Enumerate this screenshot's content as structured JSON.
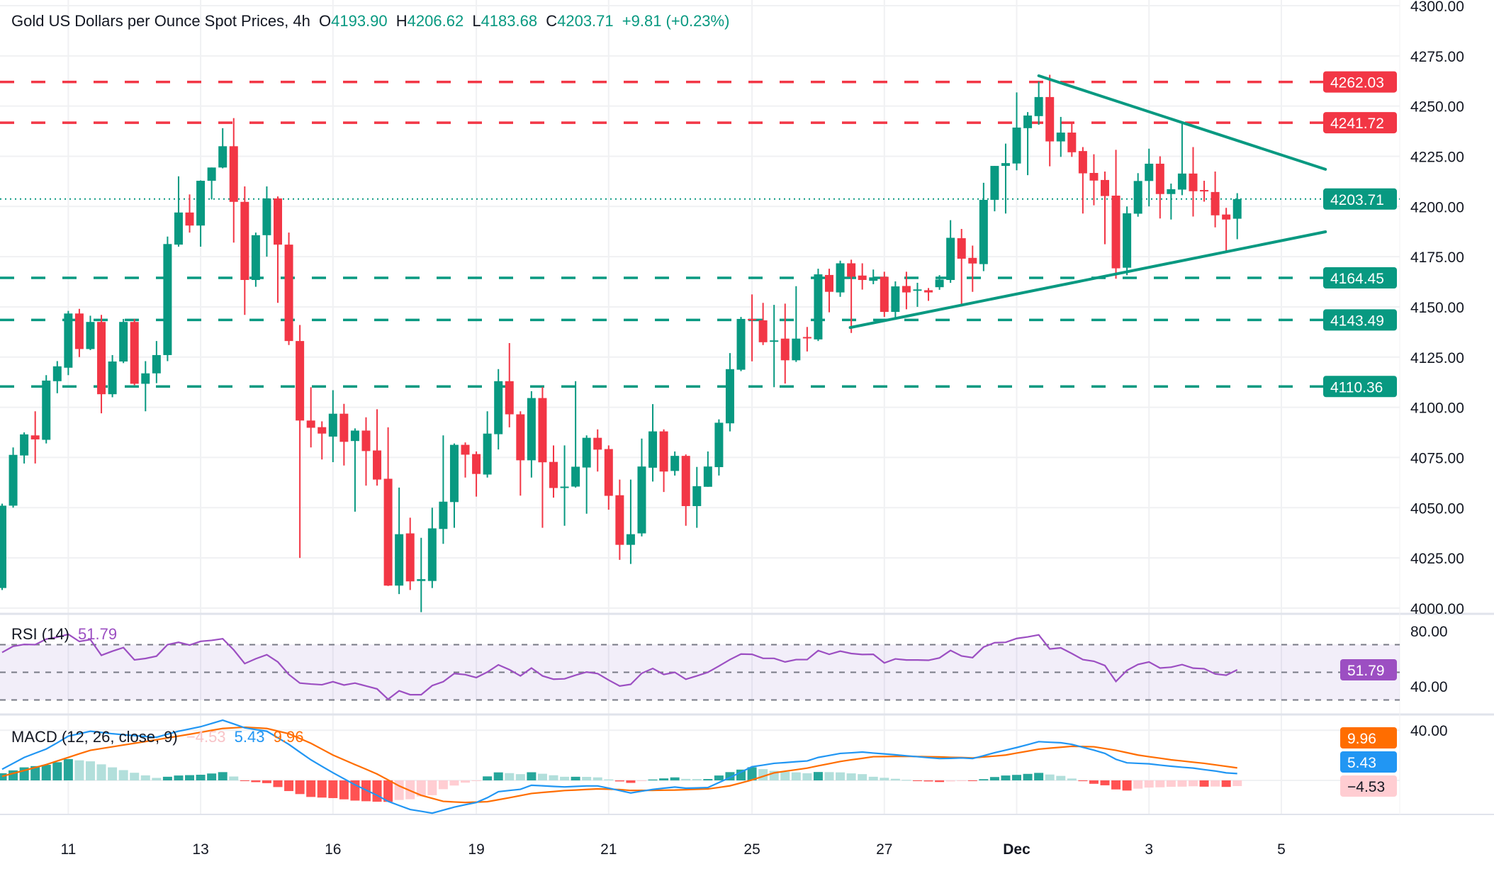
{
  "header": {
    "title": "Gold US Dollars per Ounce Spot Prices, 4h",
    "open_label": "O",
    "open": "4193.90",
    "high_label": "H",
    "high": "4206.62",
    "low_label": "L",
    "low": "4183.68",
    "close_label": "C",
    "close": "4203.71",
    "change": "+9.81 (+0.23%)"
  },
  "colors": {
    "up": "#089981",
    "down": "#f23645",
    "resistance": "#f23645",
    "support": "#089981",
    "rsi": "#9c4fc2",
    "macd": "#2196f3",
    "signal": "#ff6d00",
    "hist_up_strong": "#26a69a",
    "hist_up_weak": "#b2dfdb",
    "hist_down_strong": "#ff5252",
    "hist_down_weak": "#ffcdd2"
  },
  "chart_data": [
    {
      "type": "candlestick",
      "title": "Gold US Dollars per Ounce Spot Prices, 4h",
      "ylim": [
        3997,
        4302.8
      ],
      "y_ticks": [
        "4000.00",
        "4025.00",
        "4050.00",
        "4075.00",
        "4100.00",
        "4125.00",
        "4150.00",
        "4175.00",
        "4200.00",
        "4225.00",
        "4250.00",
        "4275.00",
        "4300.00"
      ],
      "x_ticks": [
        {
          "label": "11",
          "candle": 6
        },
        {
          "label": "13",
          "candle": 18
        },
        {
          "label": "16",
          "candle": 30
        },
        {
          "label": "19",
          "candle": 43
        },
        {
          "label": "21",
          "candle": 55
        },
        {
          "label": "25",
          "candle": 68
        },
        {
          "label": "27",
          "candle": 80
        },
        {
          "label": "Dec",
          "candle": 92
        },
        {
          "label": "3",
          "candle": 104
        },
        {
          "label": "5",
          "candle": 116
        }
      ],
      "grid": true,
      "ohlc": [
        [
          4010,
          4052,
          4009,
          4051
        ],
        [
          4051,
          4080,
          4050,
          4076.3
        ],
        [
          4076,
          4087.5,
          4072,
          4086.5
        ],
        [
          4086,
          4098,
          4072,
          4084
        ],
        [
          4083.8,
          4116,
          4082,
          4113.3
        ],
        [
          4113,
          4123,
          4107,
          4120.4
        ],
        [
          4119.7,
          4148,
          4116,
          4146.7
        ],
        [
          4146.7,
          4149,
          4125,
          4129
        ],
        [
          4129,
          4145.6,
          4128.5,
          4142.5
        ],
        [
          4142.5,
          4146,
          4097,
          4106.5
        ],
        [
          4106.5,
          4126,
          4105,
          4122.8
        ],
        [
          4122.8,
          4144,
          4122,
          4142.5
        ],
        [
          4142.5,
          4144,
          4111,
          4111.7
        ],
        [
          4111.7,
          4123,
          4098,
          4116.9
        ],
        [
          4116.9,
          4133,
          4112,
          4126
        ],
        [
          4126,
          4185,
          4123,
          4181.3
        ],
        [
          4181,
          4215,
          4180,
          4197
        ],
        [
          4197,
          4206,
          4187,
          4190.5
        ],
        [
          4190.5,
          4213,
          4180,
          4212.8
        ],
        [
          4212.8,
          4219.4,
          4203.5,
          4219.4
        ],
        [
          4219.4,
          4239,
          4219,
          4230
        ],
        [
          4230,
          4244,
          4182,
          4202.3
        ],
        [
          4202.3,
          4210,
          4146,
          4163.4
        ],
        [
          4163.4,
          4187,
          4160,
          4185.7
        ],
        [
          4185.7,
          4210,
          4175,
          4204
        ],
        [
          4204,
          4205,
          4152,
          4181
        ],
        [
          4181,
          4187,
          4131,
          4133
        ],
        [
          4133,
          4141,
          4025,
          4093.4
        ],
        [
          4093.4,
          4110,
          4080,
          4089.8
        ],
        [
          4090.1,
          4093,
          4074,
          4086.9
        ],
        [
          4085.4,
          4108.5,
          4072.7,
          4096.8
        ],
        [
          4096.8,
          4101.7,
          4071,
          4082.8
        ],
        [
          4083.2,
          4089.5,
          4048,
          4088.4
        ],
        [
          4088.4,
          4095,
          4061,
          4078.2
        ],
        [
          4078.5,
          4099,
          4061,
          4064
        ],
        [
          4064.4,
          4090,
          4011,
          4011.2
        ],
        [
          4011.2,
          4060,
          4007,
          4036.8
        ],
        [
          4037.2,
          4045,
          4009,
          4013.3
        ],
        [
          4013.5,
          4035,
          3998,
          4014.4
        ],
        [
          4013.5,
          4050,
          4010,
          4039.7
        ],
        [
          4039.4,
          4086,
          4032,
          4053
        ],
        [
          4052.8,
          4082,
          4040,
          4081.3
        ],
        [
          4081.3,
          4082.5,
          4065,
          4076.4
        ],
        [
          4076.7,
          4078,
          4055.5,
          4066.8
        ],
        [
          4066.5,
          4098,
          4065,
          4086.9
        ],
        [
          4086.6,
          4119,
          4079,
          4113
        ],
        [
          4113,
          4132,
          4090,
          4096.5
        ],
        [
          4096.5,
          4098,
          4056,
          4073.6
        ],
        [
          4073.6,
          4108,
          4065,
          4104.6
        ],
        [
          4104.6,
          4110,
          4040,
          4072.6
        ],
        [
          4072.8,
          4081,
          4055,
          4059.8
        ],
        [
          4060,
          4081,
          4041,
          4060.5
        ],
        [
          4060.5,
          4113,
          4060,
          4070.4
        ],
        [
          4070,
          4086,
          4047,
          4084.8
        ],
        [
          4084.8,
          4089,
          4068,
          4078.9
        ],
        [
          4079.2,
          4081,
          4049,
          4055.9
        ],
        [
          4056.2,
          4064,
          4024,
          4031.5
        ],
        [
          4031.5,
          4064,
          4022,
          4036.8
        ],
        [
          4037.2,
          4084.4,
          4035.7,
          4070.5
        ],
        [
          4069.9,
          4101.6,
          4063,
          4088
        ],
        [
          4088,
          4089,
          4057.8,
          4068
        ],
        [
          4068.3,
          4078,
          4066,
          4075.8
        ],
        [
          4075.8,
          4076.5,
          4041,
          4050.8
        ],
        [
          4050.8,
          4070.3,
          4040,
          4060.7
        ],
        [
          4060.4,
          4078,
          4060.4,
          4070.5
        ],
        [
          4070.2,
          4094,
          4066,
          4092.3
        ],
        [
          4092,
          4127,
          4088,
          4119
        ],
        [
          4118.7,
          4145,
          4118,
          4144
        ],
        [
          4144,
          4156.2,
          4122.9,
          4143.5
        ],
        [
          4143.3,
          4152,
          4131,
          4132.4
        ],
        [
          4133,
          4151,
          4110,
          4133.3
        ],
        [
          4134.2,
          4151.6,
          4111.8,
          4123.4
        ],
        [
          4123.4,
          4160.3,
          4122.6,
          4134.2
        ],
        [
          4135,
          4140,
          4127.8,
          4134.3
        ],
        [
          4133.8,
          4169,
          4133,
          4166.2
        ],
        [
          4165.9,
          4169,
          4147.3,
          4157.5
        ],
        [
          4157.2,
          4173,
          4155,
          4171.7
        ],
        [
          4171.7,
          4173.5,
          4137,
          4165
        ],
        [
          4165.6,
          4171.7,
          4158.6,
          4163.4
        ],
        [
          4163,
          4168.6,
          4161.3,
          4164.7
        ],
        [
          4165,
          4167.5,
          4145,
          4147.5
        ],
        [
          4147.5,
          4162.7,
          4143.6,
          4160.2
        ],
        [
          4160.4,
          4167.5,
          4148.8,
          4157.2
        ],
        [
          4158.4,
          4162,
          4150,
          4158.7
        ],
        [
          4158.3,
          4159.4,
          4153,
          4157.2
        ],
        [
          4159.8,
          4165.8,
          4158.5,
          4163.6
        ],
        [
          4163.4,
          4193.2,
          4162,
          4184.4
        ],
        [
          4184.2,
          4188.8,
          4150.2,
          4174
        ],
        [
          4174.4,
          4180.5,
          4157.5,
          4171.6
        ],
        [
          4171.3,
          4211.8,
          4167.8,
          4203.3
        ],
        [
          4203.3,
          4220.2,
          4197.6,
          4220.2
        ],
        [
          4220.2,
          4231.3,
          4196.5,
          4221.6
        ],
        [
          4221.4,
          4256.8,
          4218,
          4239.3
        ],
        [
          4239,
          4247,
          4215.6,
          4245.3
        ],
        [
          4245,
          4262.2,
          4240.7,
          4254.5
        ],
        [
          4254.5,
          4265.6,
          4220,
          4232.4
        ],
        [
          4232.4,
          4244.6,
          4224.7,
          4236.8
        ],
        [
          4236.8,
          4241.7,
          4224.7,
          4227
        ],
        [
          4227.6,
          4229.6,
          4196.5,
          4216.5
        ],
        [
          4216.7,
          4226,
          4200.6,
          4212.9
        ],
        [
          4213.2,
          4217.4,
          4181.2,
          4205.2
        ],
        [
          4205.4,
          4228.2,
          4164,
          4169.2
        ],
        [
          4169.5,
          4200,
          4165.8,
          4196.6
        ],
        [
          4196.4,
          4216.6,
          4194.9,
          4212.7
        ],
        [
          4212.7,
          4228.8,
          4200,
          4221.3
        ],
        [
          4221.3,
          4225,
          4194,
          4206.2
        ],
        [
          4206.2,
          4211.4,
          4193.5,
          4208.6
        ],
        [
          4208.4,
          4241.7,
          4205.6,
          4216.4
        ],
        [
          4216.4,
          4229.6,
          4195,
          4207.6
        ],
        [
          4208.2,
          4212.8,
          4202.4,
          4208
        ],
        [
          4207.2,
          4217.4,
          4189.6,
          4195.6
        ],
        [
          4196,
          4199.3,
          4177.5,
          4193.5
        ],
        [
          4193.9,
          4206.62,
          4183.68,
          4203.71
        ]
      ],
      "levels": [
        {
          "value": 4262.03,
          "label": "4262.03",
          "kind": "resistance"
        },
        {
          "value": 4241.72,
          "label": "4241.72",
          "kind": "resistance"
        },
        {
          "value": 4164.45,
          "label": "4164.45",
          "kind": "support"
        },
        {
          "value": 4143.49,
          "label": "4143.49",
          "kind": "support"
        },
        {
          "value": 4110.36,
          "label": "4110.36",
          "kind": "support"
        }
      ],
      "last_price": {
        "value": 4203.71,
        "label": "4203.71"
      },
      "trendlines": [
        {
          "name": "upper",
          "points": [
            [
              94,
              4265.1
            ],
            [
              120,
              4218.5
            ]
          ]
        },
        {
          "name": "lower",
          "points": [
            [
              76.9,
              4139.7
            ],
            [
              120,
              4187.4
            ]
          ]
        }
      ]
    },
    {
      "type": "line",
      "title": "RSI (14)",
      "value_label": "51.79",
      "ylim": [
        19,
        91.3
      ],
      "y_ticks": [
        "80.00",
        "40.00"
      ],
      "bands": [
        70,
        50,
        30
      ],
      "values": [
        64.4,
        68.8,
        70.2,
        70,
        74,
        75.4,
        77.5,
        72.3,
        73.7,
        62.3,
        65.3,
        67.9,
        59,
        60,
        61.7,
        70,
        71.7,
        69.7,
        72.4,
        73.1,
        74.3,
        66.2,
        56.3,
        59.8,
        62.7,
        57.5,
        48.4,
        42.2,
        41.5,
        41,
        43.2,
        40.8,
        42.2,
        40.1,
        38,
        30.5,
        36.6,
        33.8,
        33.8,
        40.4,
        43.2,
        49.1,
        48.3,
        46.2,
        50.2,
        55.4,
        51.9,
        47.4,
        53.1,
        47.4,
        45,
        45.3,
        47.9,
        50.2,
        49.1,
        44.4,
        40.1,
        41.3,
        49.3,
        52.8,
        48.4,
        50,
        45,
        47.4,
        50,
        54.5,
        59.2,
        63.2,
        63,
        60.1,
        60.1,
        57.5,
        59.2,
        59.2,
        65.7,
        63,
        65.3,
        63.6,
        62.9,
        63,
        56.8,
        59.7,
        58.9,
        58.9,
        58.7,
        60.4,
        65.8,
        61.8,
        60.6,
        68.3,
        71.4,
        71.7,
        74.5,
        75.6,
        77.1,
        66.9,
        67.7,
        63.6,
        59.2,
        58,
        54.9,
        43.4,
        51.4,
        55.7,
        57.5,
        53.1,
        53.7,
        55.6,
        53,
        52.6,
        48.8,
        47.9,
        51.79
      ]
    },
    {
      "type": "line+bar",
      "title": "MACD (12, 26, close, 9)",
      "hist_label": "−4.53",
      "macd_label": "5.43",
      "signal_label": "9.96",
      "y_ticks": [
        "40.00"
      ],
      "macd": [
        8.9,
        13.6,
        18.3,
        21.7,
        25,
        30,
        35.3,
        37.2,
        39.2,
        38.2,
        37.2,
        36.4,
        35.7,
        35,
        34.4,
        36.8,
        39.2,
        41,
        42.8,
        45.4,
        48,
        45,
        41.9,
        40.5,
        39.2,
        34,
        28.7,
        22.5,
        16.4,
        11.2,
        6.1,
        1.3,
        -3.5,
        -7.7,
        -11.9,
        -16.7,
        -20,
        -23.2,
        -24.6,
        -26.1,
        -23.7,
        -21.3,
        -19.4,
        -17.6,
        -13.8,
        -9,
        -8,
        -7.1,
        -3.9,
        -4.3,
        -4.8,
        -5.2,
        -4.8,
        -4.4,
        -4.4,
        -6.2,
        -8.1,
        -10,
        -8.6,
        -7.2,
        -6.2,
        -5.3,
        -6.2,
        -6,
        -5.7,
        -1.7,
        2.3,
        6.6,
        10.9,
        12.2,
        13.6,
        14.2,
        14.9,
        15.5,
        18.3,
        19.9,
        21.5,
        22,
        22.6,
        21.8,
        21.1,
        20.4,
        19.6,
        18.9,
        18.1,
        17.4,
        17.6,
        17.9,
        17.4,
        19.7,
        22.1,
        24.1,
        26.2,
        28.5,
        30.9,
        30.4,
        30,
        28.7,
        26.4,
        24.1,
        21.5,
        16.8,
        14,
        13.6,
        13.2,
        12.2,
        11.3,
        10.5,
        9.8,
        8.6,
        7.5,
        6,
        5.43
      ],
      "signal": [
        3.2,
        5.6,
        7.9,
        10.3,
        12.6,
        15.5,
        18.3,
        21.2,
        24,
        25.4,
        26.8,
        28.2,
        29.6,
        31,
        32.4,
        33.9,
        35.3,
        36.8,
        38.3,
        39.9,
        41.4,
        41.9,
        42.4,
        41.9,
        41.4,
        39.3,
        37.2,
        33.4,
        29.6,
        24.9,
        20.2,
        16.4,
        12.6,
        8.9,
        5.1,
        0.4,
        -4.4,
        -8.2,
        -11.9,
        -14.3,
        -16.7,
        -17.2,
        -17.6,
        -17.3,
        -17,
        -15.4,
        -13.8,
        -12.1,
        -10.4,
        -9.6,
        -8.9,
        -8.1,
        -7.7,
        -7.2,
        -6.8,
        -7,
        -7.3,
        -8,
        -8,
        -7.9,
        -7.8,
        -7.7,
        -7.4,
        -7.1,
        -6.8,
        -5.6,
        -4.3,
        -2,
        0.4,
        3.2,
        6,
        7.3,
        8.5,
        9.8,
        11.6,
        13.3,
        15.1,
        16.4,
        17.6,
        18.9,
        19,
        19.1,
        19.2,
        19,
        18.9,
        18.7,
        18.4,
        18.2,
        17.9,
        18.7,
        19.4,
        20.2,
        21.8,
        23.3,
        24.9,
        25.7,
        26.4,
        27.2,
        27,
        26.8,
        25.4,
        24,
        22.1,
        20.2,
        18.9,
        17.7,
        16.4,
        15.5,
        14.5,
        13.6,
        12.4,
        11.2,
        9.96
      ]
    }
  ]
}
